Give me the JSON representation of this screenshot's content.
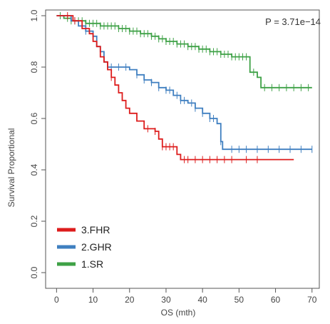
{
  "chart_data": {
    "type": "line",
    "subtype": "kaplan-meier",
    "xlabel": "OS (mth)",
    "ylabel": "Survival Proportional",
    "xlim": [
      -3,
      72
    ],
    "ylim": [
      0,
      1
    ],
    "xticks": [
      0,
      10,
      20,
      30,
      40,
      50,
      60,
      70
    ],
    "yticks": [
      0.0,
      0.2,
      0.4,
      0.6,
      0.8,
      1.0
    ],
    "ytick_labels": [
      "0.0",
      "0.2",
      "0.4",
      "0.6",
      "0.8",
      "1.0"
    ],
    "annotation": "P = 3.71e−14",
    "legend": {
      "position": "bottom-left"
    },
    "series": [
      {
        "name": "3.FHR",
        "color": "#dd1c1c",
        "points": [
          [
            0,
            1.0
          ],
          [
            2,
            1.0
          ],
          [
            4.5,
            0.98
          ],
          [
            7,
            0.95
          ],
          [
            9,
            0.93
          ],
          [
            10,
            0.9
          ],
          [
            11,
            0.88
          ],
          [
            12,
            0.84
          ],
          [
            13,
            0.82
          ],
          [
            14,
            0.79
          ],
          [
            15,
            0.76
          ],
          [
            16,
            0.73
          ],
          [
            17,
            0.7
          ],
          [
            18,
            0.67
          ],
          [
            19,
            0.64
          ],
          [
            20,
            0.62
          ],
          [
            22,
            0.59
          ],
          [
            24,
            0.56
          ],
          [
            27,
            0.55
          ],
          [
            28,
            0.52
          ],
          [
            29,
            0.49
          ],
          [
            33,
            0.46
          ],
          [
            34,
            0.44
          ],
          [
            65,
            0.44
          ]
        ],
        "censor_x": [
          3,
          5,
          15,
          25,
          27,
          29,
          30,
          31,
          32,
          35,
          36,
          38,
          40,
          42,
          44,
          46,
          48,
          52,
          55
        ]
      },
      {
        "name": "2.GHR",
        "color": "#3f7fc0",
        "points": [
          [
            0,
            1.0
          ],
          [
            4,
            0.98
          ],
          [
            6,
            0.96
          ],
          [
            8,
            0.94
          ],
          [
            10,
            0.92
          ],
          [
            11,
            0.88
          ],
          [
            12,
            0.86
          ],
          [
            13,
            0.82
          ],
          [
            14,
            0.8
          ],
          [
            20,
            0.79
          ],
          [
            22,
            0.77
          ],
          [
            24,
            0.75
          ],
          [
            26,
            0.74
          ],
          [
            28,
            0.72
          ],
          [
            30,
            0.71
          ],
          [
            32,
            0.69
          ],
          [
            34,
            0.67
          ],
          [
            36,
            0.66
          ],
          [
            38,
            0.64
          ],
          [
            40,
            0.62
          ],
          [
            42,
            0.6
          ],
          [
            44,
            0.58
          ],
          [
            45,
            0.51
          ],
          [
            45.5,
            0.48
          ],
          [
            70,
            0.48
          ]
        ],
        "censor_x": [
          5,
          8,
          12,
          15,
          17,
          19,
          22,
          24,
          26,
          28,
          30,
          31,
          33,
          34,
          35,
          37,
          38,
          40,
          42,
          43,
          45,
          48,
          50,
          52,
          55,
          58,
          61,
          64,
          67,
          70
        ]
      },
      {
        "name": "1.SR",
        "color": "#3ea146",
        "points": [
          [
            0,
            1.0
          ],
          [
            2,
            0.99
          ],
          [
            4,
            0.98
          ],
          [
            6,
            0.98
          ],
          [
            8,
            0.97
          ],
          [
            10,
            0.97
          ],
          [
            12,
            0.96
          ],
          [
            14,
            0.96
          ],
          [
            17,
            0.95
          ],
          [
            20,
            0.94
          ],
          [
            23,
            0.93
          ],
          [
            26,
            0.92
          ],
          [
            28,
            0.91
          ],
          [
            30,
            0.9
          ],
          [
            33,
            0.89
          ],
          [
            36,
            0.88
          ],
          [
            39,
            0.87
          ],
          [
            42,
            0.86
          ],
          [
            45,
            0.85
          ],
          [
            48,
            0.84
          ],
          [
            52,
            0.84
          ],
          [
            53,
            0.78
          ],
          [
            55,
            0.76
          ],
          [
            56,
            0.72
          ],
          [
            70,
            0.72
          ]
        ],
        "censor_x": [
          1,
          3,
          4,
          5,
          6,
          7,
          8,
          9,
          10,
          11,
          12,
          13,
          14,
          15,
          16,
          17,
          18,
          19,
          20,
          21,
          22,
          23,
          24,
          25,
          26,
          27,
          28,
          29,
          30,
          31,
          32,
          33,
          34,
          35,
          36,
          37,
          38,
          39,
          40,
          41,
          42,
          43,
          44,
          45,
          46,
          47,
          48,
          49,
          50,
          51,
          52,
          54,
          57,
          59,
          61,
          63,
          65,
          67,
          69
        ]
      }
    ]
  }
}
